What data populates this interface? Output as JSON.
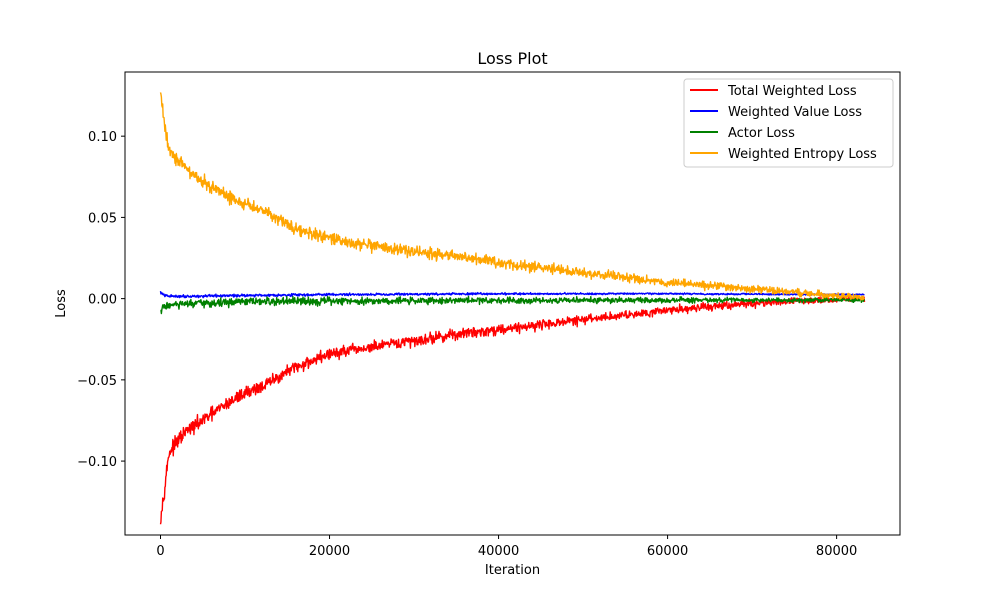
{
  "chart_data": {
    "type": "line",
    "title": "Loss Plot",
    "xlabel": "Iteration",
    "ylabel": "Loss",
    "xlim": [
      -4200,
      87500
    ],
    "ylim": [
      -0.1455,
      0.1395
    ],
    "xticks": [
      0,
      20000,
      40000,
      60000,
      80000
    ],
    "xtick_labels": [
      "0",
      "20000",
      "40000",
      "60000",
      "80000"
    ],
    "yticks": [
      -0.1,
      -0.05,
      0.0,
      0.05,
      0.1
    ],
    "ytick_labels": [
      "−0.10",
      "−0.05",
      "0.00",
      "0.05",
      "0.10"
    ],
    "grid": false,
    "legend_position": "top-right",
    "series": [
      {
        "name": "Total Weighted Loss",
        "color": "#ff0000",
        "x": [
          0,
          400,
          1000,
          2000,
          3000,
          5000,
          7500,
          10000,
          12500,
          15000,
          17500,
          20000,
          25000,
          30000,
          35000,
          40000,
          45000,
          50000,
          55000,
          60000,
          65000,
          70000,
          75000,
          80000,
          83300
        ],
        "y": [
          -0.135,
          -0.12,
          -0.095,
          -0.088,
          -0.082,
          -0.075,
          -0.066,
          -0.058,
          -0.053,
          -0.045,
          -0.039,
          -0.034,
          -0.03,
          -0.026,
          -0.022,
          -0.019,
          -0.016,
          -0.013,
          -0.01,
          -0.007,
          -0.005,
          -0.003,
          -0.0015,
          -0.0005,
          0.0005
        ],
        "noise": 0.004
      },
      {
        "name": "Weighted Value Loss",
        "color": "#0000ff",
        "x": [
          0,
          400,
          1000,
          5000,
          10000,
          20000,
          40000,
          60000,
          80000,
          83300
        ],
        "y": [
          0.004,
          0.002,
          0.0015,
          0.0015,
          0.002,
          0.0025,
          0.003,
          0.003,
          0.0025,
          0.0025
        ],
        "noise": 0.0008
      },
      {
        "name": "Actor Loss",
        "color": "#008000",
        "x": [
          0,
          400,
          1000,
          5000,
          10000,
          20000,
          40000,
          60000,
          80000,
          83300
        ],
        "y": [
          -0.008,
          -0.005,
          -0.004,
          -0.003,
          -0.002,
          -0.0015,
          -0.001,
          -0.001,
          -0.0008,
          -0.001
        ],
        "noise": 0.0025
      },
      {
        "name": "Weighted Entropy Loss",
        "color": "#ffa500",
        "x": [
          0,
          400,
          1000,
          2000,
          3000,
          5000,
          7500,
          10000,
          12500,
          15000,
          17500,
          20000,
          25000,
          30000,
          35000,
          40000,
          45000,
          50000,
          55000,
          60000,
          65000,
          70000,
          75000,
          80000,
          83300
        ],
        "y": [
          0.127,
          0.11,
          0.092,
          0.086,
          0.08,
          0.072,
          0.064,
          0.058,
          0.054,
          0.046,
          0.04,
          0.037,
          0.032,
          0.029,
          0.026,
          0.022,
          0.019,
          0.016,
          0.013,
          0.01,
          0.008,
          0.006,
          0.004,
          0.002,
          0.0005
        ],
        "noise": 0.004
      }
    ]
  }
}
